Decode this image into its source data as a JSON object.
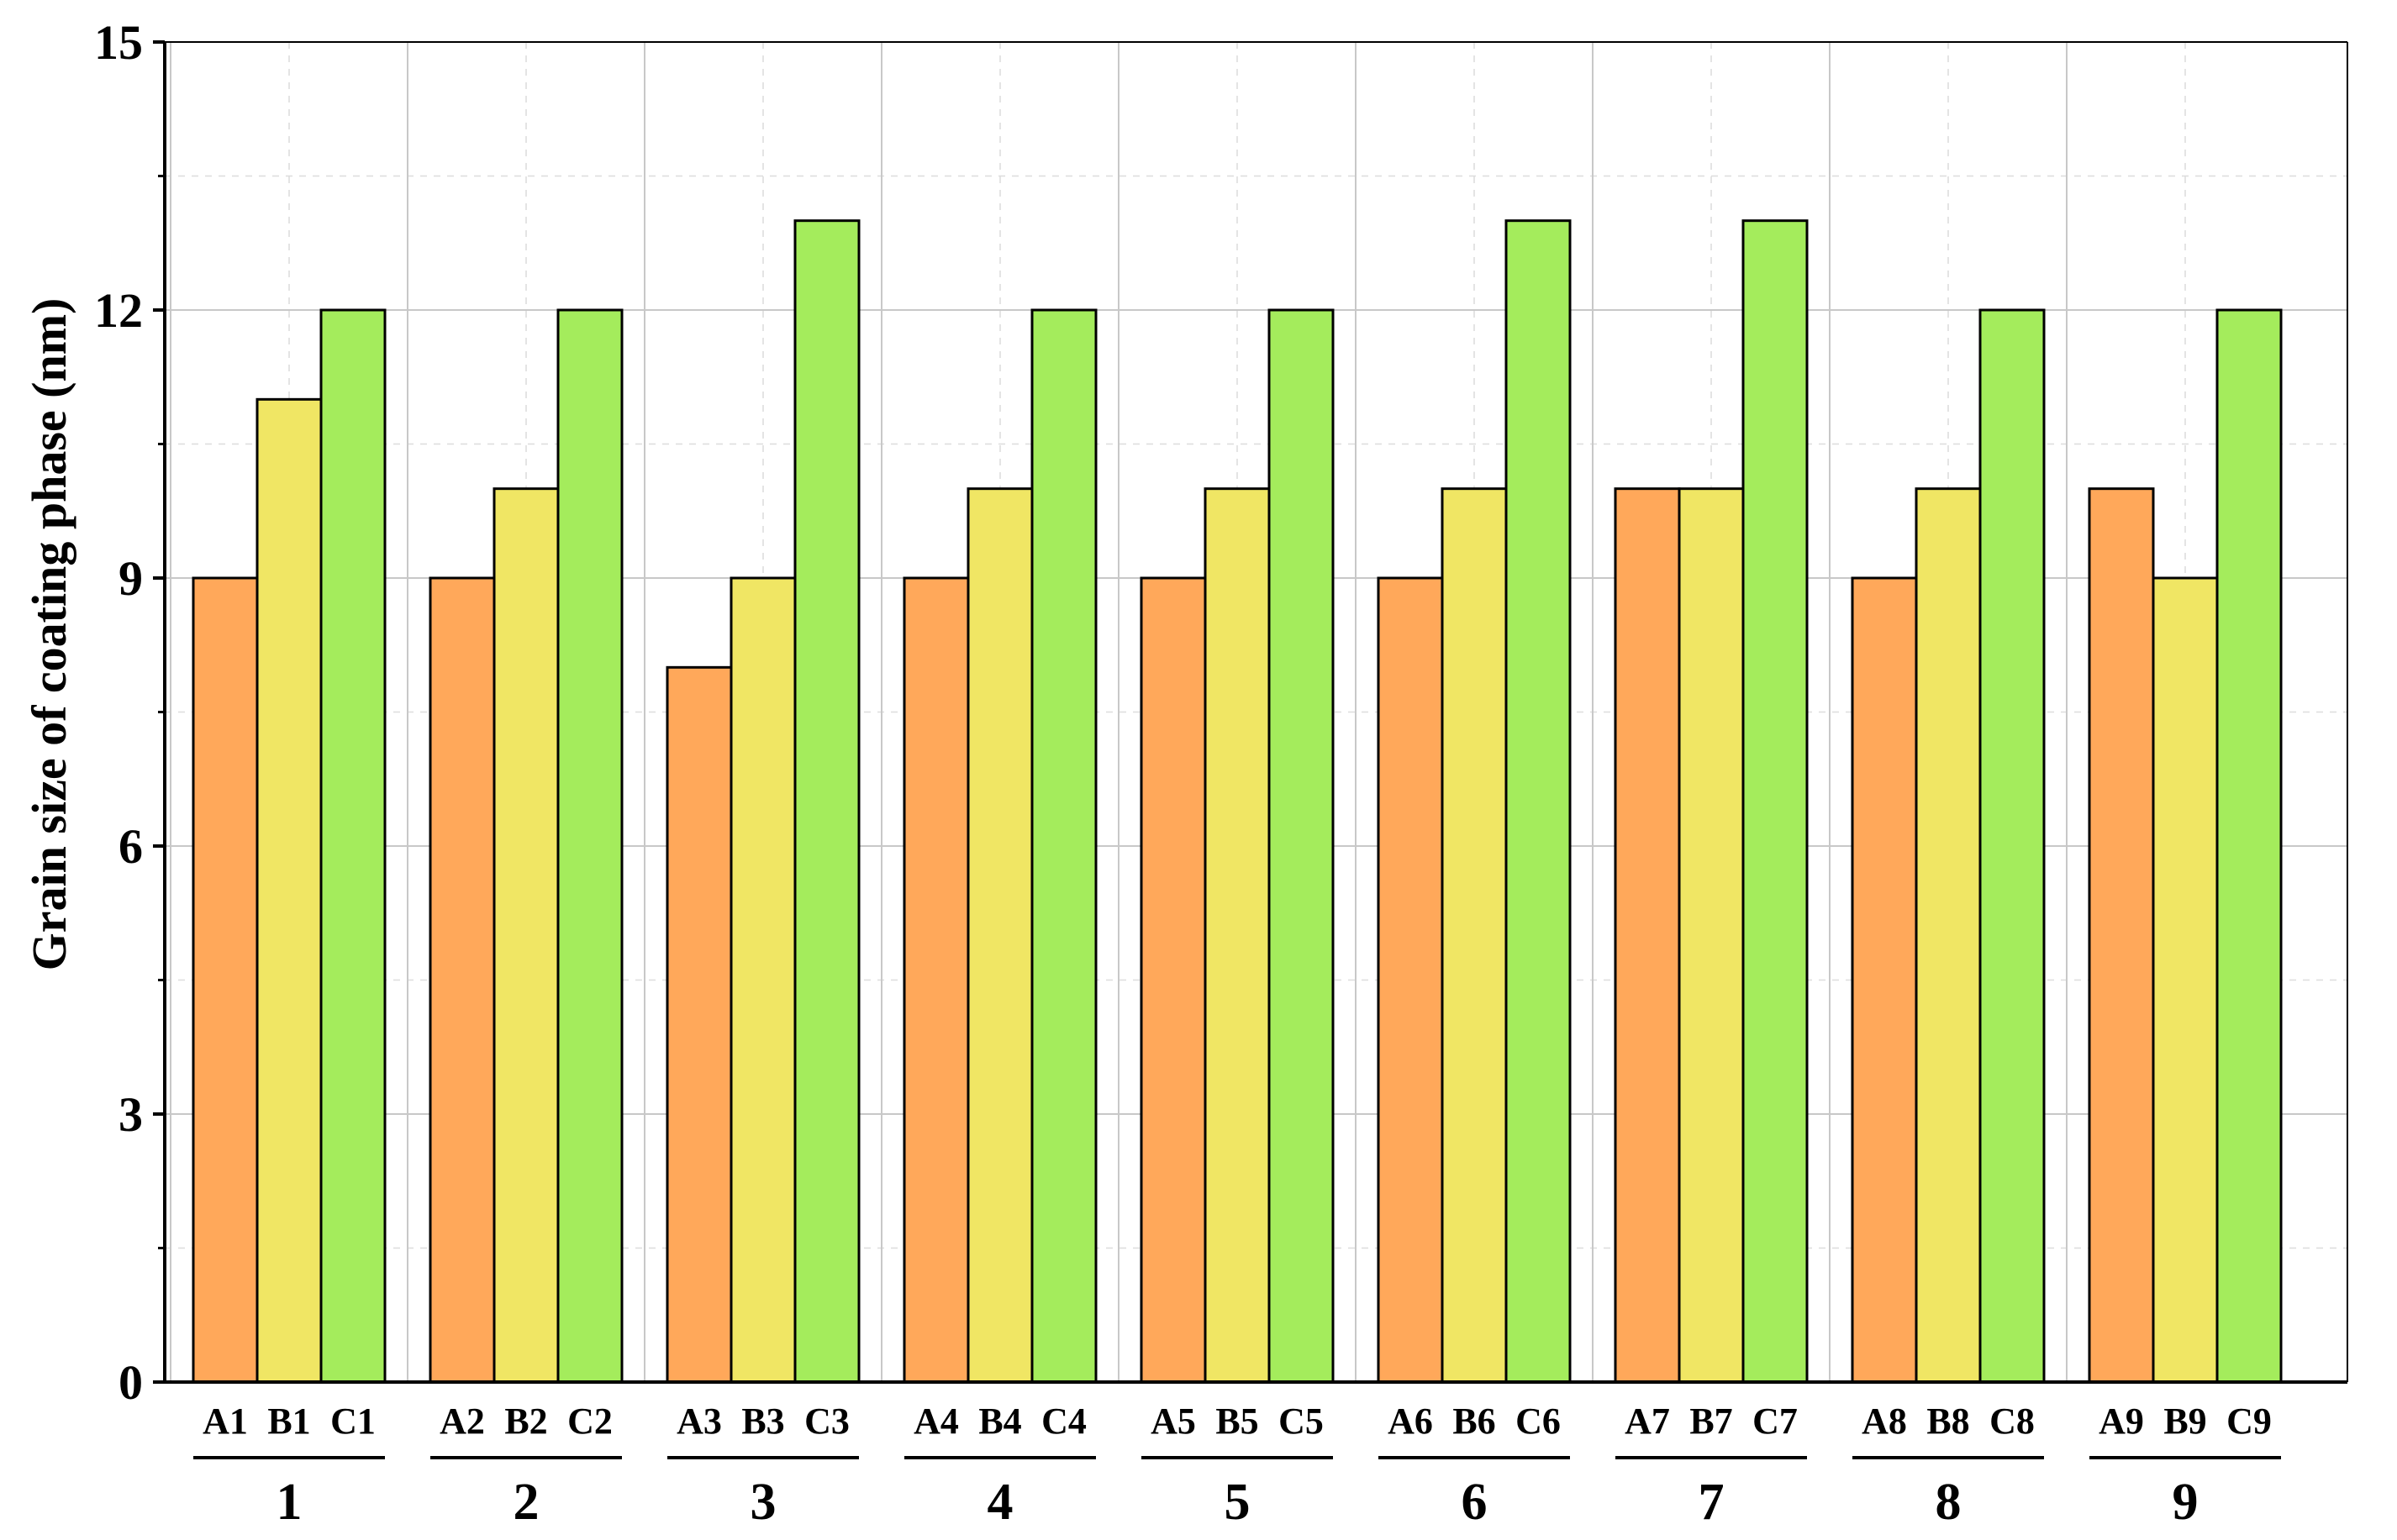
{
  "chart_data": {
    "type": "bar",
    "title": "",
    "xlabel": "",
    "ylabel": "Grain size of coating phase (nm)",
    "ylim": [
      0,
      15
    ],
    "yticks": [
      0,
      3,
      6,
      9,
      12,
      15
    ],
    "grid": true,
    "groups": [
      {
        "label": "1",
        "bars": [
          {
            "name": "A1",
            "value": 9
          },
          {
            "name": "B1",
            "value": 11
          },
          {
            "name": "C1",
            "value": 12
          }
        ]
      },
      {
        "label": "2",
        "bars": [
          {
            "name": "A2",
            "value": 9
          },
          {
            "name": "B2",
            "value": 10
          },
          {
            "name": "C2",
            "value": 12
          }
        ]
      },
      {
        "label": "3",
        "bars": [
          {
            "name": "A3",
            "value": 8
          },
          {
            "name": "B3",
            "value": 9
          },
          {
            "name": "C3",
            "value": 13
          }
        ]
      },
      {
        "label": "4",
        "bars": [
          {
            "name": "A4",
            "value": 9
          },
          {
            "name": "B4",
            "value": 10
          },
          {
            "name": "C4",
            "value": 12
          }
        ]
      },
      {
        "label": "5",
        "bars": [
          {
            "name": "A5",
            "value": 9
          },
          {
            "name": "B5",
            "value": 10
          },
          {
            "name": "C5",
            "value": 12
          }
        ]
      },
      {
        "label": "6",
        "bars": [
          {
            "name": "A6",
            "value": 9
          },
          {
            "name": "B6",
            "value": 10
          },
          {
            "name": "C6",
            "value": 13
          }
        ]
      },
      {
        "label": "7",
        "bars": [
          {
            "name": "A7",
            "value": 10
          },
          {
            "name": "B7",
            "value": 10
          },
          {
            "name": "C7",
            "value": 13
          }
        ]
      },
      {
        "label": "8",
        "bars": [
          {
            "name": "A8",
            "value": 9
          },
          {
            "name": "B8",
            "value": 10
          },
          {
            "name": "C8",
            "value": 12
          }
        ]
      },
      {
        "label": "9",
        "bars": [
          {
            "name": "A9",
            "value": 10
          },
          {
            "name": "B9",
            "value": 9
          },
          {
            "name": "C9",
            "value": 12
          }
        ]
      }
    ],
    "colors": {
      "A": "#ffa85a",
      "B": "#f0e664",
      "C": "#a4ec5c"
    }
  }
}
